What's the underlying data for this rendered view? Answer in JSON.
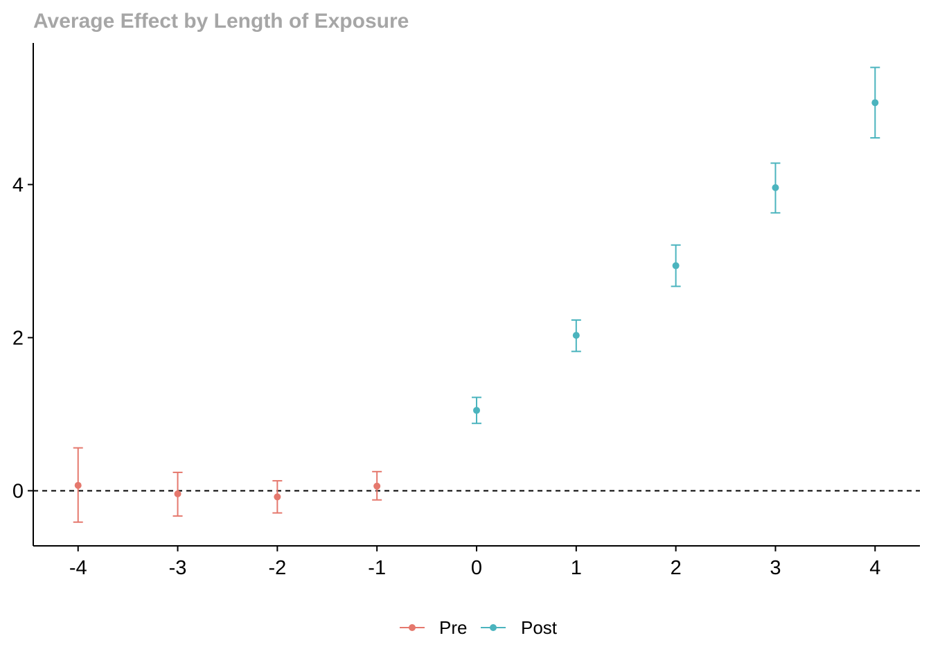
{
  "chart_data": {
    "type": "scatter",
    "title": "Average Effect by Length of Exposure",
    "xlabel": "",
    "ylabel": "",
    "xlim": [
      -4.45,
      4.45
    ],
    "ylim": [
      -0.72,
      5.85
    ],
    "x_ticks": [
      -4,
      -3,
      -2,
      -1,
      0,
      1,
      2,
      3,
      4
    ],
    "y_ticks": [
      0,
      2,
      4
    ],
    "reference_line": {
      "y": 0,
      "style": "dashed"
    },
    "grid": false,
    "legend_position": "bottom",
    "series": [
      {
        "name": "Pre",
        "color": "#E5786D",
        "points": [
          {
            "x": -4,
            "y": 0.07,
            "lower": -0.41,
            "upper": 0.56
          },
          {
            "x": -3,
            "y": -0.04,
            "lower": -0.33,
            "upper": 0.24
          },
          {
            "x": -2,
            "y": -0.08,
            "lower": -0.29,
            "upper": 0.13
          },
          {
            "x": -1,
            "y": 0.06,
            "lower": -0.12,
            "upper": 0.25
          }
        ]
      },
      {
        "name": "Post",
        "color": "#4BB4BE",
        "points": [
          {
            "x": 0,
            "y": 1.05,
            "lower": 0.88,
            "upper": 1.22
          },
          {
            "x": 1,
            "y": 2.03,
            "lower": 1.82,
            "upper": 2.23
          },
          {
            "x": 2,
            "y": 2.94,
            "lower": 2.67,
            "upper": 3.21
          },
          {
            "x": 3,
            "y": 3.96,
            "lower": 3.63,
            "upper": 4.28
          },
          {
            "x": 4,
            "y": 5.07,
            "lower": 4.61,
            "upper": 5.53
          }
        ]
      }
    ],
    "title_color": "#A6A6A6",
    "axis_color": "#000000"
  }
}
